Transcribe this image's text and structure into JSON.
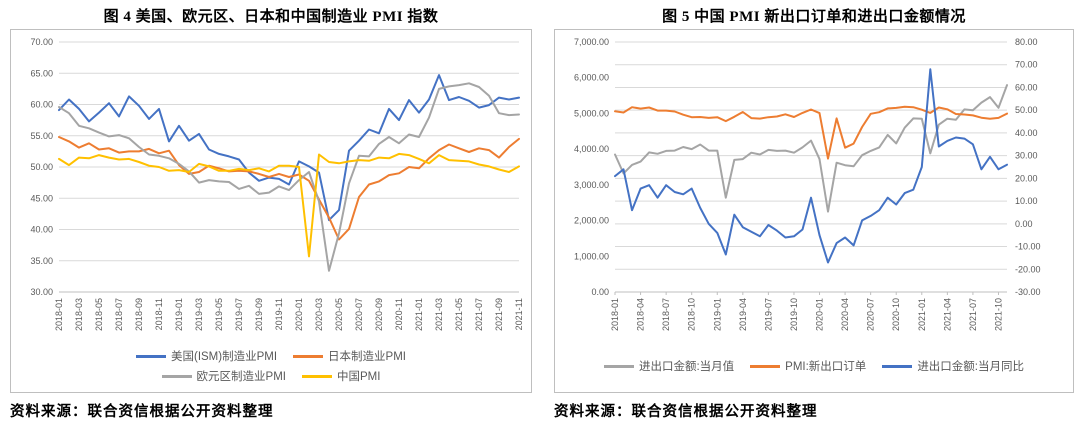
{
  "chart_data": [
    {
      "type": "line",
      "title": "图 4  美国、欧元区、日本和中国制造业 PMI 指数",
      "source": "资料来源：联合资信根据公开资料整理",
      "x": [
        "2018-01",
        "2018-02",
        "2018-03",
        "2018-04",
        "2018-05",
        "2018-06",
        "2018-07",
        "2018-08",
        "2018-09",
        "2018-10",
        "2018-11",
        "2018-12",
        "2019-01",
        "2019-02",
        "2019-03",
        "2019-04",
        "2019-05",
        "2019-06",
        "2019-07",
        "2019-08",
        "2019-09",
        "2019-10",
        "2019-11",
        "2019-12",
        "2020-01",
        "2020-02",
        "2020-03",
        "2020-04",
        "2020-05",
        "2020-06",
        "2020-07",
        "2020-08",
        "2020-09",
        "2020-10",
        "2020-11",
        "2020-12",
        "2021-01",
        "2021-02",
        "2021-03",
        "2021-04",
        "2021-05",
        "2021-06",
        "2021-07",
        "2021-08",
        "2021-09",
        "2021-10",
        "2021-11"
      ],
      "x_tick_every": 2,
      "y_axis": {
        "min": 30,
        "max": 70,
        "tick_labels": [
          "70.00",
          "65.00",
          "60.00",
          "55.00",
          "50.00",
          "45.00",
          "40.00",
          "35.00",
          "30.00"
        ]
      },
      "grid": true,
      "legend_position": "bottom",
      "legend_rows": [
        [
          "美国(ISM)制造业PMI",
          "日本制造业PMI"
        ],
        [
          "欧元区制造业PMI",
          "中国PMI"
        ]
      ],
      "series": [
        {
          "name": "美国(ISM)制造业PMI",
          "color": "#4472C4",
          "axis": "left",
          "values": [
            59.1,
            60.8,
            59.3,
            57.3,
            58.7,
            60.2,
            58.1,
            61.3,
            59.8,
            57.7,
            59.3,
            54.1,
            56.6,
            54.2,
            55.3,
            52.8,
            52.1,
            51.7,
            51.2,
            49.1,
            47.8,
            48.3,
            48.1,
            47.2,
            50.9,
            50.1,
            49.1,
            41.5,
            43.1,
            52.6,
            54.2,
            56.0,
            55.4,
            59.3,
            57.5,
            60.7,
            58.7,
            60.8,
            64.7,
            60.7,
            61.2,
            60.6,
            59.5,
            59.9,
            61.1,
            60.8,
            61.1
          ]
        },
        {
          "name": "日本制造业PMI",
          "color": "#ED7D31",
          "axis": "left",
          "values": [
            54.8,
            54.1,
            53.1,
            53.8,
            52.8,
            53.0,
            52.3,
            52.5,
            52.5,
            52.9,
            52.2,
            52.6,
            50.3,
            48.9,
            49.2,
            50.2,
            49.8,
            49.3,
            49.4,
            49.3,
            48.9,
            48.4,
            48.9,
            48.4,
            48.8,
            47.8,
            44.8,
            41.9,
            38.4,
            40.1,
            45.2,
            47.2,
            47.7,
            48.7,
            49.0,
            50.0,
            49.8,
            51.4,
            52.7,
            53.6,
            53.0,
            52.4,
            53.0,
            52.7,
            51.5,
            53.2,
            54.5
          ]
        },
        {
          "name": "欧元区制造业PMI",
          "color": "#A5A5A5",
          "axis": "left",
          "values": [
            59.6,
            58.6,
            56.6,
            56.2,
            55.5,
            54.9,
            55.1,
            54.6,
            53.2,
            52.0,
            51.8,
            51.4,
            50.5,
            49.3,
            47.5,
            47.9,
            47.7,
            47.6,
            46.5,
            47.0,
            45.7,
            45.9,
            46.9,
            46.3,
            47.9,
            49.2,
            44.5,
            33.4,
            39.4,
            47.4,
            51.8,
            51.7,
            53.7,
            54.8,
            53.8,
            55.2,
            54.8,
            57.9,
            62.5,
            62.9,
            63.1,
            63.4,
            62.8,
            61.4,
            58.6,
            58.3,
            58.4
          ]
        },
        {
          "name": "中国PMI",
          "color": "#FFC000",
          "axis": "left",
          "values": [
            51.3,
            50.3,
            51.5,
            51.4,
            51.9,
            51.5,
            51.2,
            51.3,
            50.8,
            50.2,
            50.0,
            49.4,
            49.5,
            49.2,
            50.5,
            50.1,
            49.4,
            49.4,
            49.7,
            49.5,
            49.8,
            49.3,
            50.2,
            50.2,
            50.0,
            35.7,
            52.0,
            50.8,
            50.6,
            50.9,
            51.1,
            51.0,
            51.5,
            51.4,
            52.1,
            51.9,
            51.3,
            50.6,
            51.9,
            51.1,
            51.0,
            50.9,
            50.4,
            50.1,
            49.6,
            49.2,
            50.1
          ]
        }
      ]
    },
    {
      "type": "line",
      "title": "图 5  中国 PMI 新出口订单和进出口金额情况",
      "source": "资料来源：联合资信根据公开资料整理",
      "x": [
        "2018-01",
        "2018-02",
        "2018-03",
        "2018-04",
        "2018-05",
        "2018-06",
        "2018-07",
        "2018-08",
        "2018-09",
        "2018-10",
        "2018-11",
        "2018-12",
        "2019-01",
        "2019-02",
        "2019-03",
        "2019-04",
        "2019-05",
        "2019-06",
        "2019-07",
        "2019-08",
        "2019-09",
        "2019-10",
        "2019-11",
        "2019-12",
        "2020-01",
        "2020-02",
        "2020-03",
        "2020-04",
        "2020-05",
        "2020-06",
        "2020-07",
        "2020-08",
        "2020-09",
        "2020-10",
        "2020-11",
        "2020-12",
        "2021-01",
        "2021-02",
        "2021-03",
        "2021-04",
        "2021-05",
        "2021-06",
        "2021-07",
        "2021-08",
        "2021-09",
        "2021-10",
        "2021-11"
      ],
      "x_tick_every": 3,
      "left_y_axis": {
        "min": 0,
        "max": 7000,
        "tick_labels": [
          "7,000.00",
          "6,000.00",
          "5,000.00",
          "4,000.00",
          "3,000.00",
          "2,000.00",
          "1,000.00",
          "0.00"
        ]
      },
      "right_y_axis": {
        "min": -30,
        "max": 80,
        "tick_labels": [
          "80.00",
          "70.00",
          "60.00",
          "50.00",
          "40.00",
          "30.00",
          "20.00",
          "10.00",
          "0.00",
          "-10.00",
          "-20.00",
          "-30.00"
        ]
      },
      "grid": true,
      "legend_position": "bottom",
      "legend_rows": [
        [
          "进出口金额:当月值",
          "PMI:新出口订单",
          "进出口金额:当月同比"
        ]
      ],
      "series": [
        {
          "name": "进出口金额:当月值",
          "color": "#A5A5A5",
          "axis": "left",
          "values": [
            3850,
            3320,
            3560,
            3650,
            3910,
            3870,
            3950,
            3960,
            4060,
            4000,
            4130,
            3960,
            3960,
            2640,
            3700,
            3720,
            3900,
            3850,
            3980,
            3950,
            3960,
            3900,
            4050,
            4240,
            3720,
            2250,
            3620,
            3550,
            3520,
            3830,
            3950,
            4050,
            4400,
            4160,
            4600,
            4860,
            4850,
            3880,
            4684,
            4852,
            4823,
            5113,
            5088,
            5303,
            5457,
            5159,
            5793
          ]
        },
        {
          "name": "PMI:新出口订单",
          "color": "#ED7D31",
          "axis": "right",
          "values": [
            49.5,
            49.0,
            51.3,
            50.7,
            51.2,
            49.8,
            49.8,
            49.4,
            48.0,
            46.9,
            47.0,
            46.6,
            46.9,
            45.2,
            47.1,
            49.2,
            46.5,
            46.3,
            46.9,
            47.2,
            48.2,
            47.0,
            48.8,
            50.3,
            48.7,
            28.7,
            46.4,
            33.5,
            35.3,
            42.6,
            48.4,
            49.1,
            50.8,
            51.0,
            51.5,
            51.3,
            50.2,
            48.8,
            51.2,
            50.4,
            48.3,
            48.1,
            47.7,
            46.7,
            46.2,
            46.6,
            48.5
          ]
        },
        {
          "name": "进出口金额:当月同比",
          "color": "#4472C4",
          "axis": "right",
          "values": [
            21,
            24,
            6,
            15.5,
            17,
            11.5,
            17,
            14,
            13,
            15.5,
            7,
            0,
            -4,
            -13.5,
            4,
            -1.5,
            -3.5,
            -5.5,
            -0.5,
            -3,
            -6,
            -5.5,
            -2.5,
            11.5,
            -5,
            -17,
            -8.5,
            -6,
            -9.5,
            1.5,
            3.5,
            6,
            11.5,
            8.5,
            13.5,
            15,
            25,
            68,
            34,
            36.5,
            38,
            37.5,
            35,
            24,
            29.5,
            24,
            26
          ]
        }
      ]
    }
  ]
}
